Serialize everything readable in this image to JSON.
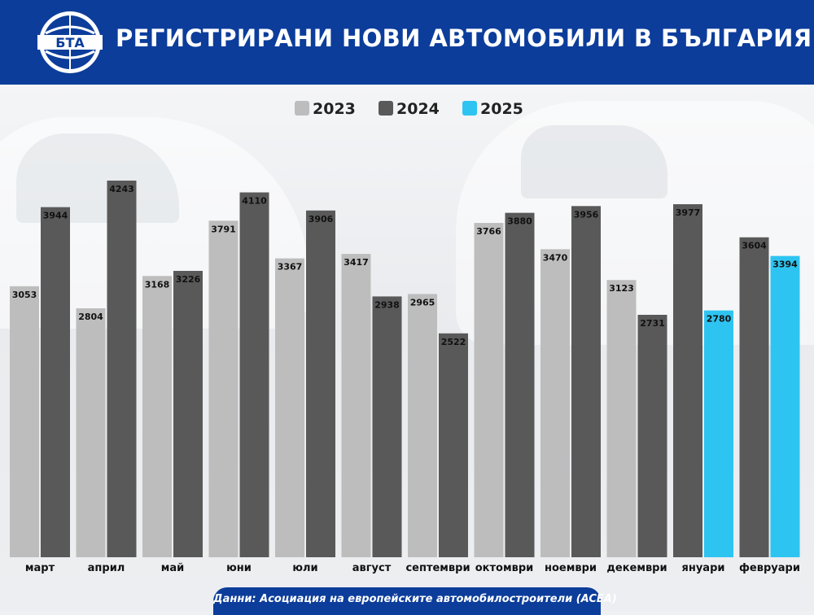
{
  "header": {
    "logo_text": "БТА",
    "title": "РЕГИСТРИРАНИ НОВИ АВТОМОБИЛИ В БЪЛГАРИЯ"
  },
  "colors": {
    "header_bg": "#0c3d9b",
    "series_2023": "#bdbdbd",
    "series_2024": "#595959",
    "series_2025": "#2ec4f1"
  },
  "chart_data": {
    "type": "bar",
    "title": "РЕГИСТРИРАНИ НОВИ АВТОМОБИЛИ В БЪЛГАРИЯ",
    "legend_position": "top-center",
    "ylim": [
      0,
      4300
    ],
    "grid": false,
    "groups": [
      {
        "label": "март",
        "bars": [
          {
            "series": "2023",
            "value": 3053
          },
          {
            "series": "2024",
            "value": 3944
          }
        ]
      },
      {
        "label": "април",
        "bars": [
          {
            "series": "2023",
            "value": 2804
          },
          {
            "series": "2024",
            "value": 4243
          }
        ]
      },
      {
        "label": "май",
        "bars": [
          {
            "series": "2023",
            "value": 3168
          },
          {
            "series": "2024",
            "value": 3226
          }
        ]
      },
      {
        "label": "юни",
        "bars": [
          {
            "series": "2023",
            "value": 3791
          },
          {
            "series": "2024",
            "value": 4110
          }
        ]
      },
      {
        "label": "юли",
        "bars": [
          {
            "series": "2023",
            "value": 3367
          },
          {
            "series": "2024",
            "value": 3906
          }
        ]
      },
      {
        "label": "август",
        "bars": [
          {
            "series": "2023",
            "value": 3417
          },
          {
            "series": "2024",
            "value": 2938
          }
        ]
      },
      {
        "label": "септември",
        "bars": [
          {
            "series": "2023",
            "value": 2965
          },
          {
            "series": "2024",
            "value": 2522
          }
        ]
      },
      {
        "label": "октомври",
        "bars": [
          {
            "series": "2023",
            "value": 3766
          },
          {
            "series": "2024",
            "value": 3880
          }
        ]
      },
      {
        "label": "ноември",
        "bars": [
          {
            "series": "2023",
            "value": 3470
          },
          {
            "series": "2024",
            "value": 3956
          }
        ]
      },
      {
        "label": "декември",
        "bars": [
          {
            "series": "2023",
            "value": 3123
          },
          {
            "series": "2024",
            "value": 2731
          }
        ]
      },
      {
        "label": "януари",
        "bars": [
          {
            "series": "2024",
            "value": 3977
          },
          {
            "series": "2025",
            "value": 2780
          }
        ]
      },
      {
        "label": "февруари",
        "bars": [
          {
            "series": "2024",
            "value": 3604
          },
          {
            "series": "2025",
            "value": 3394
          }
        ]
      }
    ],
    "series": [
      {
        "name": "2023",
        "color": "#bdbdbd"
      },
      {
        "name": "2024",
        "color": "#595959"
      },
      {
        "name": "2025",
        "color": "#2ec4f1"
      }
    ]
  },
  "footer": {
    "source": "Данни: Асоциация на европейските автомобилостроители (ACEA)"
  }
}
